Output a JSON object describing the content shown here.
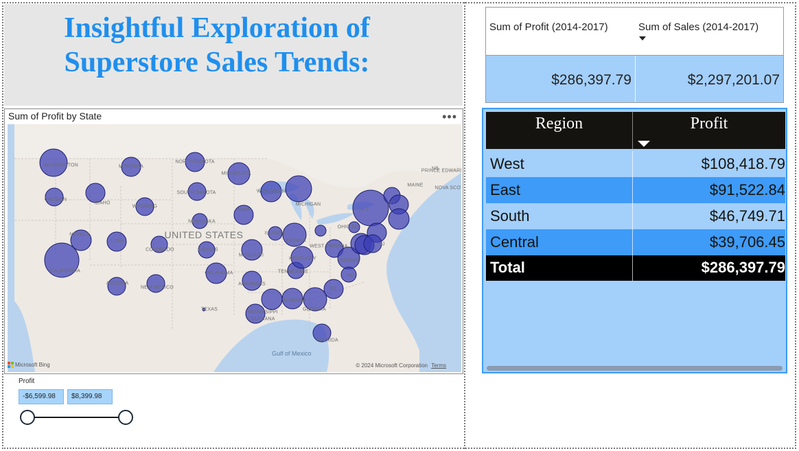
{
  "title": {
    "line1": "Insightful Exploration of",
    "line2": "Superstore Sales Trends:"
  },
  "map": {
    "title": "Sum of Profit by State",
    "more_options": "•••",
    "country_label": "UNITED STATES",
    "gulf_label": "Gulf of Mexico",
    "provider": "Microsoft Bing",
    "copyright": "© 2024 Microsoft Corporation",
    "terms": "Terms",
    "bubble_color": "#3b3fb6",
    "state_labels": [
      {
        "text": "WASHINGTON"
      },
      {
        "text": "MONTANA"
      },
      {
        "text": "NORTH DAKOTA"
      },
      {
        "text": "MINNESOTA"
      },
      {
        "text": "OREGON"
      },
      {
        "text": "IDAHO"
      },
      {
        "text": "WYOMING"
      },
      {
        "text": "SOUTH DAKOTA"
      },
      {
        "text": "WISCONSIN"
      },
      {
        "text": "MICHIGAN"
      },
      {
        "text": "IOWA"
      },
      {
        "text": "NEBRASKA"
      },
      {
        "text": "NEVADA"
      },
      {
        "text": "UTAH"
      },
      {
        "text": "COLORADO"
      },
      {
        "text": "KANSAS"
      },
      {
        "text": "MISSOURI"
      },
      {
        "text": "ILLINOIS"
      },
      {
        "text": "INDIANA"
      },
      {
        "text": "OHIO"
      },
      {
        "text": "CALIFORNIA"
      },
      {
        "text": "ARIZONA"
      },
      {
        "text": "NEW MEXICO"
      },
      {
        "text": "OKLAHOMA"
      },
      {
        "text": "ARKANSAS"
      },
      {
        "text": "TENNESSEE"
      },
      {
        "text": "KENTUCKY"
      },
      {
        "text": "WEST VIRGINIA"
      },
      {
        "text": "VIRGINIA"
      },
      {
        "text": "TEXAS"
      },
      {
        "text": "MISSISSIPPI"
      },
      {
        "text": "ALABAMA"
      },
      {
        "text": "GEORGIA"
      },
      {
        "text": "LOUISIANA"
      },
      {
        "text": "FLORIDA"
      },
      {
        "text": "SC"
      },
      {
        "text": "NC"
      },
      {
        "text": "PA"
      },
      {
        "text": "N.Y."
      },
      {
        "text": "MAINE"
      },
      {
        "text": "NB"
      },
      {
        "text": "PRINCE EDWARD ISLAND"
      },
      {
        "text": "NOVA SCOTIA"
      },
      {
        "text": "VT"
      },
      {
        "text": "NJ"
      }
    ]
  },
  "slicer": {
    "label": "Profit",
    "min_value": "-$6,599.98",
    "max_value": "$8,399.98",
    "range_start_fraction": 0,
    "range_end_fraction": 1
  },
  "card": {
    "profit_header": "Sum of Profit (2014-2017)",
    "sales_header": "Sum of Sales (2014-2017)",
    "profit_value": "$286,397.79",
    "sales_value": "$2,297,201.07"
  },
  "region_table": {
    "headers": {
      "region": "Region",
      "profit": "Profit"
    },
    "rows": [
      {
        "region": "West",
        "profit": "$108,418.79"
      },
      {
        "region": "East",
        "profit": "$91,522.84"
      },
      {
        "region": "South",
        "profit": "$46,749.71"
      },
      {
        "region": "Central",
        "profit": "$39,706.45"
      }
    ],
    "total": {
      "label": "Total",
      "profit": "$286,397.79"
    },
    "row_colors": [
      "#a3cffb",
      "#3e9bf7"
    ]
  }
}
